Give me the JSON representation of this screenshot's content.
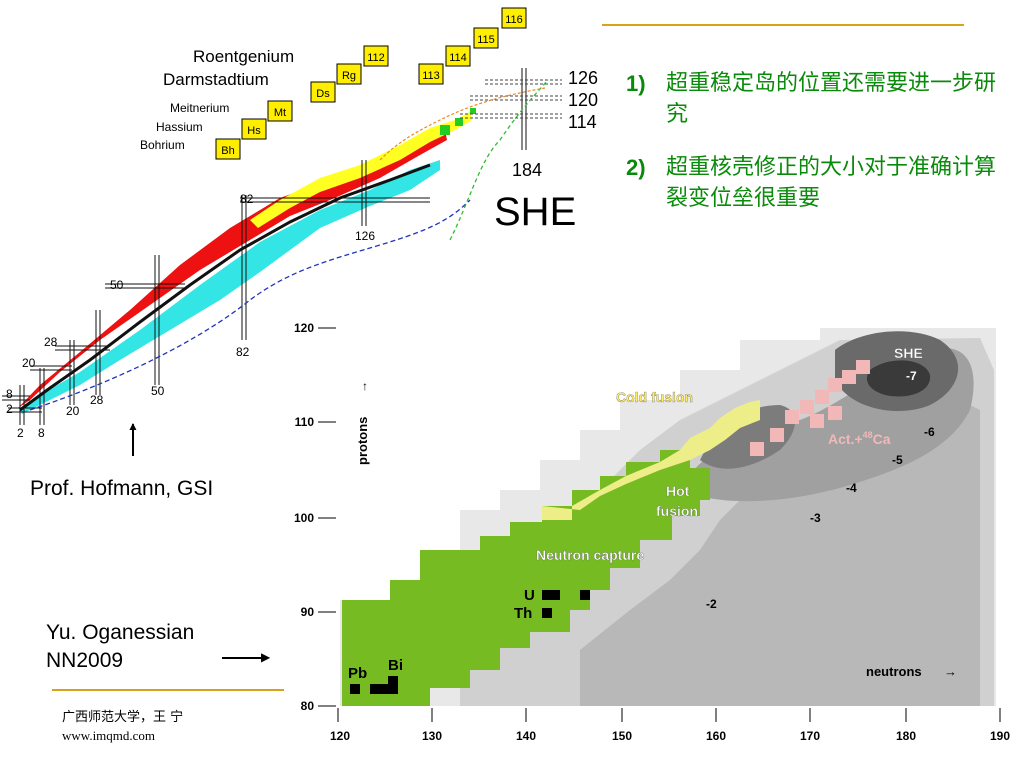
{
  "slide": {
    "bullets": [
      {
        "num": "1)",
        "text": "超重稳定岛的位置还需要进一步研究"
      },
      {
        "num": "2)",
        "text": "超重核壳修正的大小对于准确计算裂变位垒很重要"
      }
    ],
    "credit_hofmann": "Prof. Hofmann, GSI",
    "credit_oganessian_line1": "Yu. Oganessian",
    "credit_oganessian_line2": "NN2009",
    "footer_line1": "广西师范大学，王 宁",
    "footer_line2": "www.imqmd.com",
    "accent_color": "#d9a21b",
    "text_green": "#0a8a0a"
  },
  "top_chart": {
    "element_names": [
      "Roentgenium",
      "Darmstadtium",
      "Meitnerium",
      "Hassium",
      "Bohrium"
    ],
    "element_boxes": [
      "Bh",
      "Hs",
      "Mt",
      "Ds",
      "Rg",
      "112",
      "113",
      "114",
      "115",
      "116"
    ],
    "proton_magic": [
      "126",
      "120",
      "114"
    ],
    "neutron_magic_top": "184",
    "region_label": "SHE",
    "chain_labels": [
      "82",
      "126",
      "50",
      "82",
      "28",
      "50",
      "20",
      "28",
      "8",
      "20",
      "2",
      "2",
      "8"
    ],
    "colors": {
      "red": "#ee1111",
      "cyan": "#33e5e5",
      "yellow": "#ffff22",
      "box": "#ffee00"
    }
  },
  "bottom_chart": {
    "y_axis_label": "protons",
    "x_axis_label": "neutrons",
    "y_ticks": [
      "120",
      "110",
      "100",
      "90",
      "80"
    ],
    "x_ticks": [
      "120",
      "130",
      "140",
      "150",
      "160",
      "170",
      "180",
      "190"
    ],
    "region_labels": {
      "cold_fusion": "Cold fusion",
      "hot_fusion_1": "Hot",
      "hot_fusion_2": "fusion",
      "neutron_capture": "Neutron capture",
      "she": "SHE",
      "act_ca_prefix": "Act.+",
      "act_ca_mass": "48",
      "act_ca_suffix": "Ca"
    },
    "element_labels": [
      "U",
      "Th",
      "Pb",
      "Bi"
    ],
    "contour_labels": [
      "-7",
      "-6",
      "-5",
      "-4",
      "-3",
      "-2"
    ],
    "colors": {
      "green": "#77bb22",
      "yellow": "#eeee88",
      "pink": "#f2b8b8"
    }
  }
}
